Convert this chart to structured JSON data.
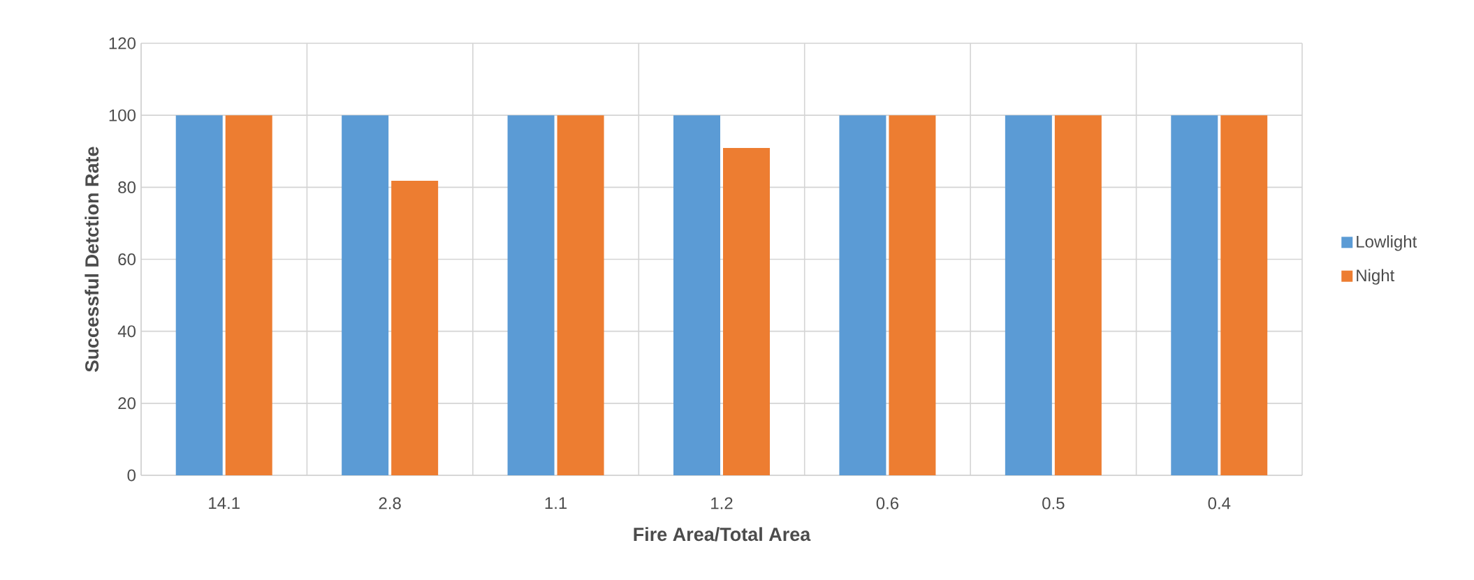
{
  "chart_data": {
    "type": "bar",
    "xlabel": "Fire Area/Total Area",
    "ylabel": "Successful Detction Rate",
    "categories": [
      "14.1",
      "2.8",
      "1.1",
      "1.2",
      "0.6",
      "0.5",
      "0.4"
    ],
    "series": [
      {
        "name": "Lowlight",
        "color": "#5b9bd5",
        "values": [
          100,
          100,
          100,
          100,
          100,
          100,
          100
        ]
      },
      {
        "name": "Night",
        "color": "#ed7d31",
        "values": [
          100,
          81.8,
          100,
          90.9,
          100,
          100,
          100
        ]
      }
    ],
    "ylim": [
      0,
      120
    ],
    "yticks": [
      0,
      20,
      40,
      60,
      80,
      100,
      120
    ],
    "grid": true,
    "legend": "right"
  }
}
